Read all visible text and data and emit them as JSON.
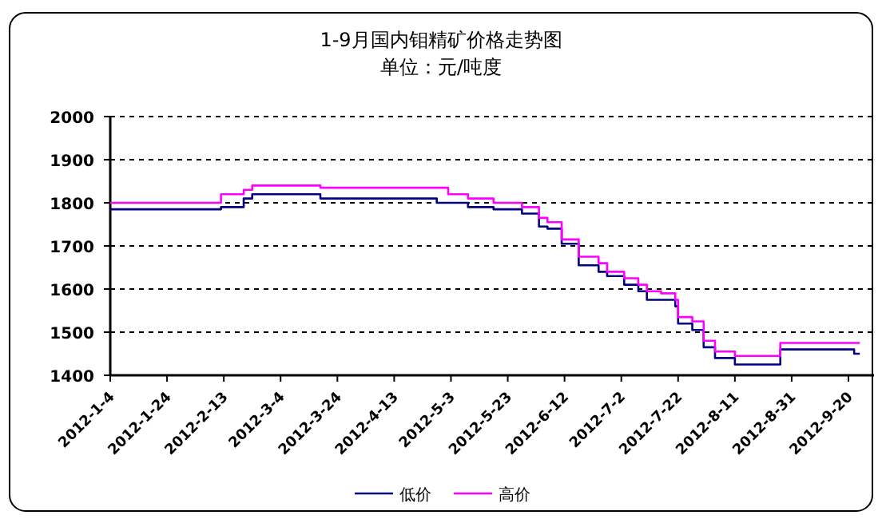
{
  "chart_data": {
    "type": "step",
    "title": "1-9月国内钼精矿价格走势图",
    "subtitle": "单位：元/吨度",
    "x": [
      "2012-01-04",
      "2012-02-12",
      "2012-02-20",
      "2012-02-23",
      "2012-03-18",
      "2012-04-28",
      "2012-05-02",
      "2012-05-09",
      "2012-05-18",
      "2012-05-28",
      "2012-06-03",
      "2012-06-06",
      "2012-06-11",
      "2012-06-17",
      "2012-06-24",
      "2012-06-27",
      "2012-07-03",
      "2012-07-08",
      "2012-07-11",
      "2012-07-16",
      "2012-07-21",
      "2012-07-22",
      "2012-07-27",
      "2012-07-31",
      "2012-08-04",
      "2012-08-11",
      "2012-08-27",
      "2012-09-22",
      "2012-09-24"
    ],
    "series": [
      {
        "name": "低价",
        "color": "#000080",
        "values": [
          1785,
          1790,
          1810,
          1820,
          1810,
          1800,
          1800,
          1790,
          1785,
          1775,
          1745,
          1740,
          1705,
          1655,
          1640,
          1630,
          1610,
          1595,
          1575,
          1575,
          1560,
          1520,
          1505,
          1465,
          1440,
          1425,
          1460,
          1450,
          1450
        ]
      },
      {
        "name": "高价",
        "color": "#ff00ff",
        "values": [
          1800,
          1820,
          1830,
          1840,
          1835,
          1835,
          1820,
          1810,
          1800,
          1790,
          1765,
          1755,
          1715,
          1675,
          1660,
          1640,
          1625,
          1610,
          1595,
          1590,
          1575,
          1535,
          1525,
          1480,
          1455,
          1445,
          1475,
          1475,
          1475
        ]
      }
    ],
    "xlim": [
      "2012-01-04",
      "2012-09-29"
    ],
    "xticks": [
      {
        "value": "2012-01-04",
        "label": "2012-1-4"
      },
      {
        "value": "2012-01-24",
        "label": "2012-1-24"
      },
      {
        "value": "2012-02-13",
        "label": "2012-2-13"
      },
      {
        "value": "2012-03-04",
        "label": "2012-3-4"
      },
      {
        "value": "2012-03-24",
        "label": "2012-3-24"
      },
      {
        "value": "2012-04-13",
        "label": "2012-4-13"
      },
      {
        "value": "2012-05-03",
        "label": "2012-5-3"
      },
      {
        "value": "2012-05-23",
        "label": "2012-5-23"
      },
      {
        "value": "2012-06-12",
        "label": "2012-6-12"
      },
      {
        "value": "2012-07-02",
        "label": "2012-7-2"
      },
      {
        "value": "2012-07-22",
        "label": "2012-7-22"
      },
      {
        "value": "2012-08-11",
        "label": "2012-8-11"
      },
      {
        "value": "2012-08-31",
        "label": "2012-8-31"
      },
      {
        "value": "2012-09-20",
        "label": "2012-9-20"
      }
    ],
    "ylim": [
      1400,
      2000
    ],
    "yticks": [
      1400,
      1500,
      1600,
      1700,
      1800,
      1900,
      2000
    ],
    "grid": "y",
    "legend": "bottom",
    "line_style": "solid",
    "marker": "none"
  }
}
